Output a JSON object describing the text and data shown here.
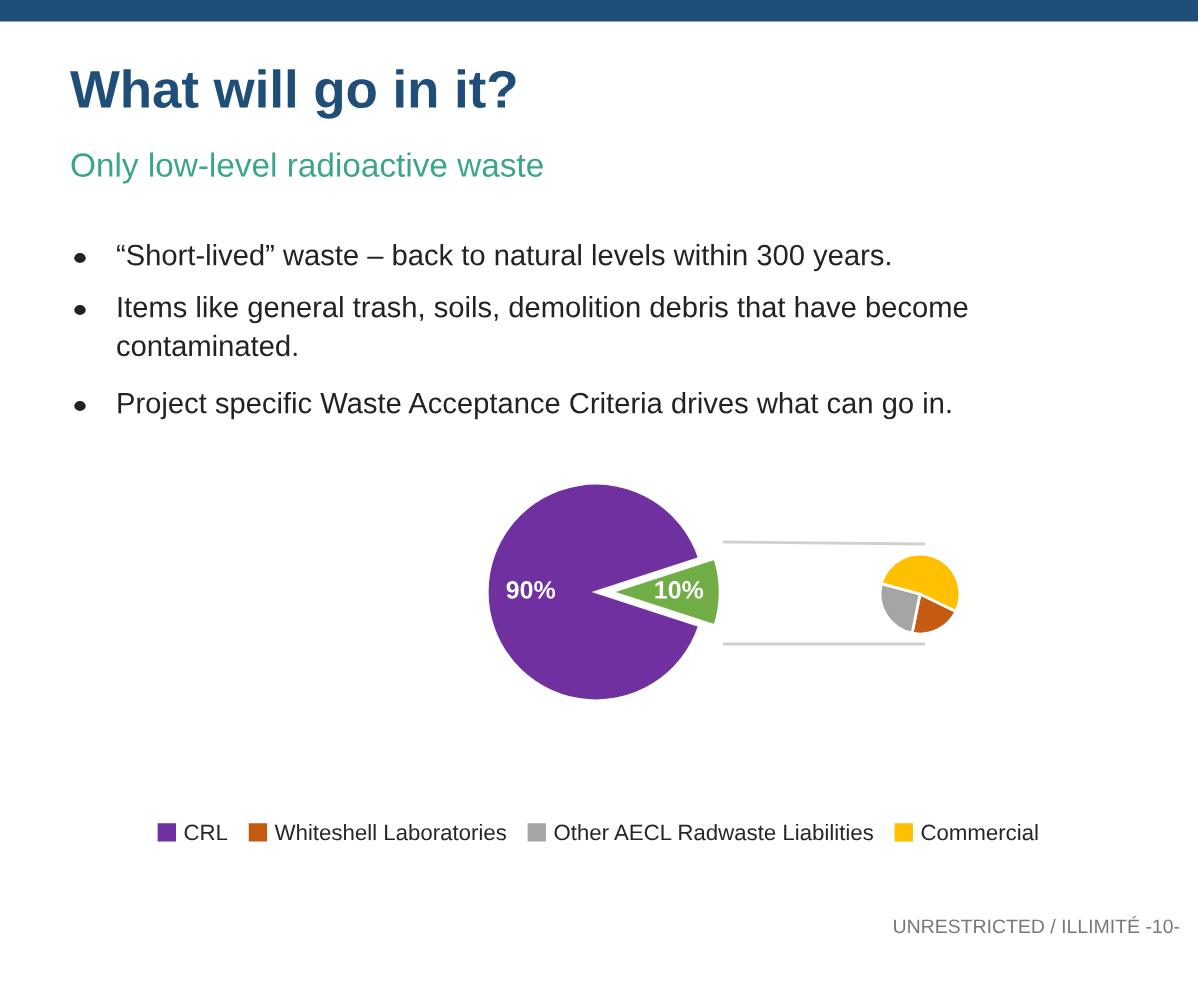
{
  "chart_data": [
    {
      "type": "pie",
      "title": "What will go in it?",
      "subtitle": "Only low-level radioactive waste",
      "annotations": [
        "“Short-lived” waste – back to natural levels within 300 years.",
        "Items like general trash, soils, demolition debris that have become\ncontaminated.",
        "Project specific Waste Acceptance Criteria drives what can go in.",
        "UNRESTRICTED / ILLIMITÉ",
        "-10-"
      ],
      "categories": [
        "CRL",
        null
      ],
      "values": [
        90,
        10
      ],
      "colors": [
        "#7030a0",
        "#70ad47"
      ],
      "value_labels": [
        "90%",
        "10%"
      ],
      "legend": "bottom"
    },
    {
      "type": "pie",
      "categories": [
        "Whiteshell Laboratories",
        "Other AECL Radwaste Liabilities",
        "Commercial"
      ],
      "values": [
        21,
        26,
        53
      ],
      "colors": [
        "#c55a11",
        "#a5a5a5",
        "#ffc000"
      ],
      "legend": "bottom"
    }
  ]
}
